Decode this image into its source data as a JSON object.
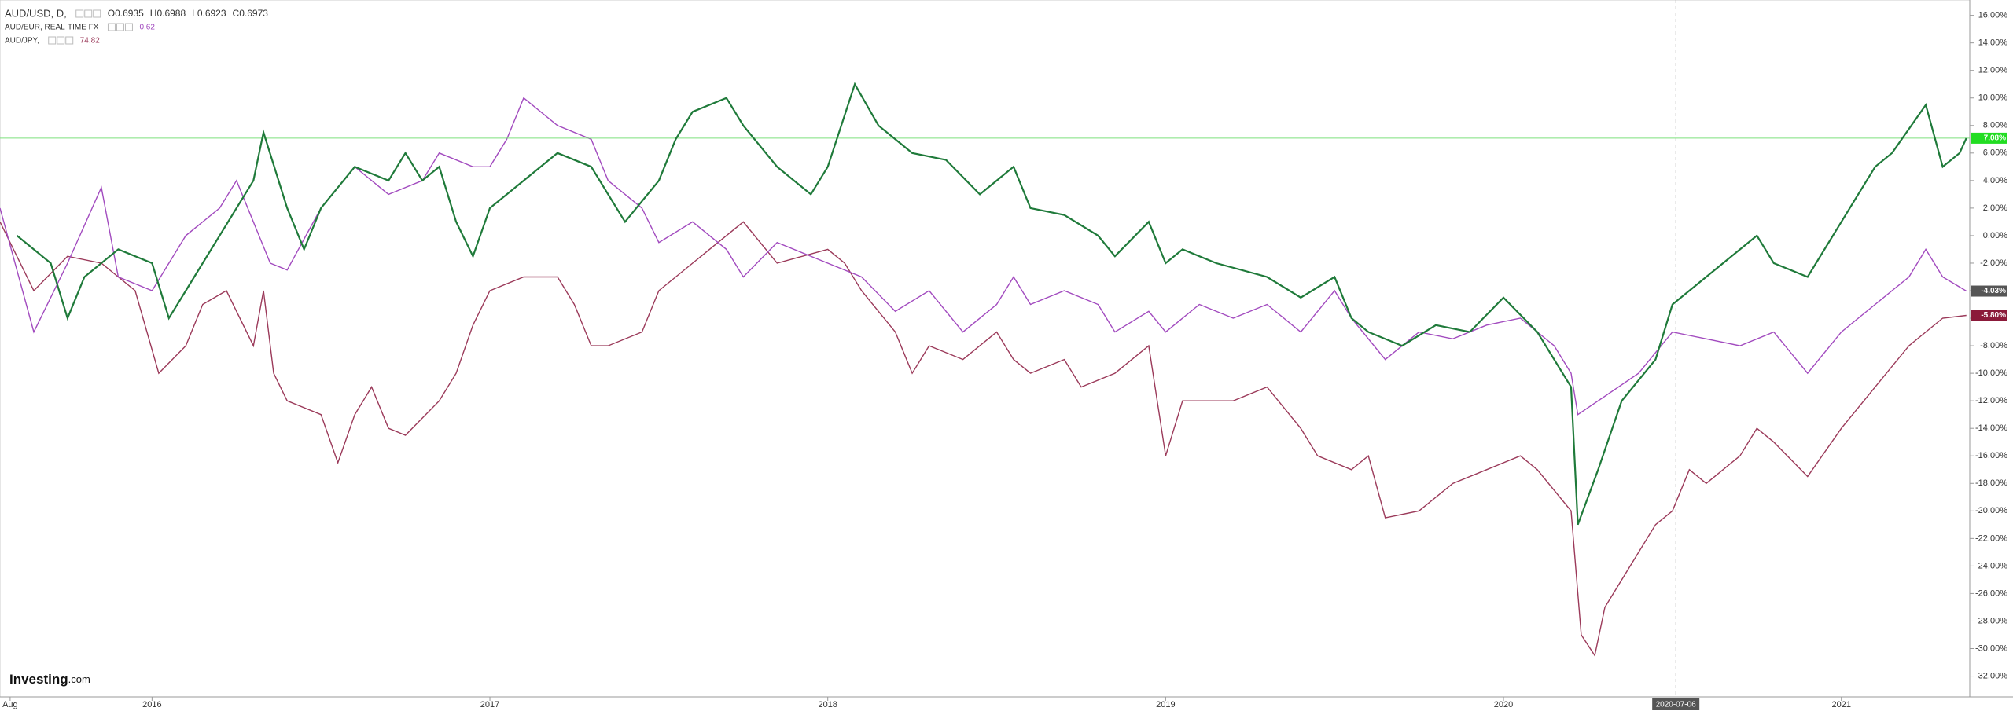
{
  "chart_data": {
    "type": "line",
    "series": [
      {
        "name": "AUD/USD, D,",
        "quote": [
          "O0.6935",
          "H0.6988",
          "L0.6923",
          "C0.6973"
        ],
        "color": "#1f7a3a",
        "last_value_label": "7.08%",
        "label_color": "#22dd22",
        "price_line": true,
        "x": [
          2015.6,
          2015.7,
          2015.75,
          2015.8,
          2015.9,
          2016.0,
          2016.05,
          2016.1,
          2016.2,
          2016.3,
          2016.33,
          2016.4,
          2016.45,
          2016.5,
          2016.6,
          2016.7,
          2016.75,
          2016.8,
          2016.85,
          2016.9,
          2016.95,
          2017.0,
          2017.1,
          2017.2,
          2017.3,
          2017.35,
          2017.4,
          2017.5,
          2017.55,
          2017.6,
          2017.7,
          2017.75,
          2017.85,
          2017.95,
          2018.0,
          2018.08,
          2018.15,
          2018.25,
          2018.35,
          2018.45,
          2018.55,
          2018.6,
          2018.7,
          2018.8,
          2018.85,
          2018.95,
          2019.0,
          2019.05,
          2019.15,
          2019.3,
          2019.4,
          2019.5,
          2019.55,
          2019.6,
          2019.7,
          2019.8,
          2019.9,
          2020.0,
          2020.1,
          2020.2,
          2020.22,
          2020.28,
          2020.35,
          2020.45,
          2020.5,
          2020.55,
          2020.65,
          2020.75,
          2020.8,
          2020.9,
          2021.0,
          2021.1,
          2021.15,
          2021.25,
          2021.3,
          2021.35,
          2021.37
        ],
        "values": [
          0,
          -2,
          -6,
          -3,
          -1,
          -2,
          -6,
          -4,
          0,
          4,
          7.5,
          2,
          -1,
          2,
          5,
          4,
          6,
          4,
          5,
          1,
          -1.5,
          2,
          4,
          6,
          5,
          3,
          1,
          4,
          7,
          9,
          10,
          8,
          5,
          3,
          5,
          11,
          8,
          6,
          5.5,
          3,
          5,
          2,
          1.5,
          0,
          -1.5,
          1,
          -2,
          -1,
          -2,
          -3,
          -4.5,
          -3,
          -6,
          -7,
          -8,
          -6.5,
          -7,
          -4.5,
          -7,
          -11,
          -21,
          -17,
          -12,
          -9,
          -5,
          -4,
          -2,
          0,
          -2,
          -3,
          1,
          5,
          6,
          9.5,
          5,
          6,
          7.08
        ]
      },
      {
        "name": "AUD/EUR, REAL-TIME FX",
        "quote": [
          "0.62"
        ],
        "color": "#a24bbf",
        "last_value_label": "-4.03%",
        "label_color": "#555555",
        "x": [
          2015.55,
          2015.65,
          2015.75,
          2015.85,
          2015.9,
          2016.0,
          2016.1,
          2016.2,
          2016.25,
          2016.35,
          2016.4,
          2016.5,
          2016.6,
          2016.7,
          2016.8,
          2016.85,
          2016.95,
          2017.0,
          2017.05,
          2017.1,
          2017.2,
          2017.3,
          2017.35,
          2017.45,
          2017.5,
          2017.6,
          2017.7,
          2017.75,
          2017.85,
          2018.0,
          2018.1,
          2018.2,
          2018.3,
          2018.4,
          2018.5,
          2018.55,
          2018.6,
          2018.7,
          2018.8,
          2018.85,
          2018.95,
          2019.0,
          2019.1,
          2019.2,
          2019.3,
          2019.4,
          2019.5,
          2019.55,
          2019.65,
          2019.75,
          2019.85,
          2019.95,
          2020.05,
          2020.15,
          2020.2,
          2020.22,
          2020.28,
          2020.4,
          2020.5,
          2020.6,
          2020.7,
          2020.8,
          2020.9,
          2021.0,
          2021.1,
          2021.2,
          2021.25,
          2021.3,
          2021.37
        ],
        "values": [
          2,
          -7,
          -2,
          3.5,
          -3,
          -4,
          0,
          2,
          4,
          -2,
          -2.5,
          2,
          5,
          3,
          4,
          6,
          5,
          5,
          7,
          10,
          8,
          7,
          4,
          2,
          -0.5,
          1,
          -1,
          -3,
          -0.5,
          -2,
          -3,
          -5.5,
          -4,
          -7,
          -5,
          -3,
          -5,
          -4,
          -5,
          -7,
          -5.5,
          -7,
          -5,
          -6,
          -5,
          -7,
          -4,
          -6,
          -9,
          -7,
          -7.5,
          -6.5,
          -6,
          -8,
          -10,
          -13,
          -12,
          -10,
          -7,
          -7.5,
          -8,
          -7,
          -10,
          -7,
          -5,
          -3,
          -1,
          -3,
          -4.03
        ]
      },
      {
        "name": "AUD/JPY,",
        "quote": [
          "74.82"
        ],
        "color": "#9b3a5a",
        "last_value_label": "-5.80%",
        "label_color": "#8b1a3a",
        "x": [
          2015.55,
          2015.65,
          2015.75,
          2015.85,
          2015.95,
          2016.02,
          2016.1,
          2016.15,
          2016.22,
          2016.3,
          2016.33,
          2016.36,
          2016.4,
          2016.5,
          2016.55,
          2016.6,
          2016.65,
          2016.7,
          2016.75,
          2016.85,
          2016.9,
          2016.95,
          2017.0,
          2017.1,
          2017.2,
          2017.25,
          2017.3,
          2017.35,
          2017.45,
          2017.5,
          2017.6,
          2017.7,
          2017.75,
          2017.85,
          2018.0,
          2018.05,
          2018.1,
          2018.2,
          2018.25,
          2018.3,
          2018.4,
          2018.5,
          2018.55,
          2018.6,
          2018.7,
          2018.75,
          2018.85,
          2018.95,
          2019.0,
          2019.05,
          2019.2,
          2019.3,
          2019.4,
          2019.45,
          2019.55,
          2019.6,
          2019.65,
          2019.75,
          2019.85,
          2019.95,
          2020.05,
          2020.1,
          2020.2,
          2020.23,
          2020.27,
          2020.3,
          2020.4,
          2020.45,
          2020.5,
          2020.55,
          2020.6,
          2020.7,
          2020.75,
          2020.8,
          2020.9,
          2021.0,
          2021.1,
          2021.2,
          2021.3,
          2021.37
        ],
        "values": [
          1,
          -4,
          -1.5,
          -2,
          -4,
          -10,
          -8,
          -5,
          -4,
          -8,
          -4,
          -10,
          -12,
          -13,
          -16.5,
          -13,
          -11,
          -14,
          -14.5,
          -12,
          -10,
          -6.5,
          -4,
          -3,
          -3,
          -5,
          -8,
          -8,
          -7,
          -4,
          -2,
          0,
          1,
          -2,
          -1,
          -2,
          -4,
          -7,
          -10,
          -8,
          -9,
          -7,
          -9,
          -10,
          -9,
          -11,
          -10,
          -8,
          -16,
          -12,
          -12,
          -11,
          -14,
          -16,
          -17,
          -16,
          -20.5,
          -20,
          -18,
          -17,
          -16,
          -17,
          -20,
          -29,
          -30.5,
          -27,
          -23,
          -21,
          -20,
          -17,
          -18,
          -16,
          -14,
          -15,
          -17.5,
          -14,
          -11,
          -8,
          -6,
          -5.8
        ]
      }
    ],
    "xlim": [
      2015.55,
      2021.38
    ],
    "xticks": [
      {
        "value": 2015.58,
        "label": "Aug"
      },
      2016,
      2017,
      2018,
      2019,
      2020,
      2021
    ],
    "crosshair_x": {
      "value": 2020.51,
      "label": "2020-07-06"
    },
    "ylim": [
      -33.51,
      17.12
    ],
    "yticks": [
      {
        "value": 16,
        "label": "16.00%"
      },
      {
        "value": 14,
        "label": "14.00%"
      },
      {
        "value": 12,
        "label": "12.00%"
      },
      {
        "value": 10,
        "label": "10.00%"
      },
      {
        "value": 8,
        "label": "8.00%"
      },
      {
        "value": 6,
        "label": "6.00%"
      },
      {
        "value": 4,
        "label": "4.00%"
      },
      {
        "value": 2,
        "label": "2.00%"
      },
      {
        "value": 0,
        "label": "0.00%"
      },
      {
        "value": -2,
        "label": "-2.00%"
      },
      {
        "value": -4,
        "label": "-4.00%"
      },
      {
        "value": -6,
        "label": "-6.00%"
      },
      {
        "value": -8,
        "label": "-8.00%"
      },
      {
        "value": -10,
        "label": "-10.00%"
      },
      {
        "value": -12,
        "label": "-12.00%"
      },
      {
        "value": -14,
        "label": "-14.00%"
      },
      {
        "value": -16,
        "label": "-16.00%"
      },
      {
        "value": -18,
        "label": "-18.00%"
      },
      {
        "value": -20,
        "label": "-20.00%"
      },
      {
        "value": -22,
        "label": "-22.00%"
      },
      {
        "value": -24,
        "label": "-24.00%"
      },
      {
        "value": -26,
        "label": "-26.00%"
      },
      {
        "value": -28,
        "label": "-28.00%"
      },
      {
        "value": -30,
        "label": "-30.00%"
      },
      {
        "value": -32,
        "label": "-32.00%"
      }
    ],
    "watermark": {
      "brand": "Investing",
      "suffix": ".com"
    }
  }
}
